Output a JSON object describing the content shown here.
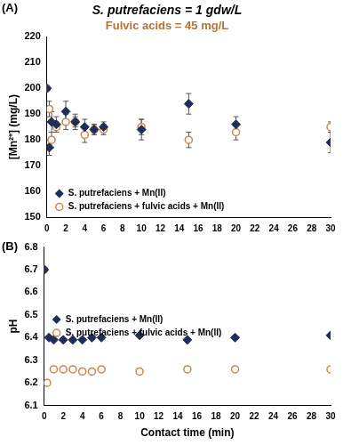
{
  "chart_data": [
    {
      "type": "scatter",
      "annotation": "(A)",
      "title": "S. putrefaciens = 1 gdw/L",
      "subtitle": "Fulvic acids = 45 mg/L",
      "y_label": "[Mn²⁺] (mg/L)",
      "xlim": [
        0,
        30
      ],
      "xticks": [
        0,
        2,
        4,
        6,
        8,
        10,
        12,
        14,
        16,
        18,
        20,
        22,
        24,
        26,
        28,
        30
      ],
      "ylim": [
        150,
        220
      ],
      "yticks": [
        150,
        160,
        170,
        180,
        190,
        200,
        210,
        220
      ],
      "grid": false,
      "legend": "lower left",
      "series": [
        {
          "name": "S. putrefaciens + Mn(II)",
          "color": "#1f2d5a",
          "marker": "diamond",
          "x": [
            0,
            0.25,
            0.5,
            1,
            2,
            3,
            4,
            5,
            6,
            10,
            15,
            20,
            30
          ],
          "values": [
            200,
            177,
            187,
            186,
            191,
            187,
            185,
            184,
            185,
            184,
            194,
            186,
            179
          ],
          "errors": [
            1,
            3,
            4,
            3,
            4,
            3,
            3,
            2,
            2,
            4,
            4,
            3,
            4
          ]
        },
        {
          "name": "S. putrefaciens + fulvic acids + Mn(II)",
          "color": "#c8864a",
          "marker": "open_circle",
          "x": [
            0,
            0.25,
            0.5,
            1,
            2,
            3,
            4,
            5,
            6,
            10,
            15,
            20,
            30
          ],
          "values": [
            200,
            192,
            180,
            185,
            187,
            187,
            182,
            184,
            184,
            185,
            180,
            183,
            185
          ],
          "errors": [
            1,
            3,
            3,
            2,
            3,
            2,
            3,
            2,
            2,
            3,
            3,
            3,
            2
          ]
        }
      ]
    },
    {
      "type": "scatter",
      "annotation": "(B)",
      "x_label": "Contact time (min)",
      "y_label": "pH",
      "xlim": [
        0,
        30
      ],
      "xticks": [
        0,
        2,
        4,
        6,
        8,
        10,
        12,
        14,
        16,
        18,
        20,
        22,
        24,
        26,
        28,
        30
      ],
      "ylim": [
        6.1,
        6.8
      ],
      "yticks": [
        6.1,
        6.2,
        6.3,
        6.4,
        6.5,
        6.6,
        6.7,
        6.8
      ],
      "grid": false,
      "legend": "center left",
      "series": [
        {
          "name": "S. putrefaciens + Mn(II)",
          "color": "#1f2d5a",
          "marker": "diamond",
          "x": [
            0,
            0.5,
            1,
            2,
            3,
            4,
            5,
            6,
            10,
            15,
            20,
            30
          ],
          "values": [
            6.7,
            6.4,
            6.39,
            6.39,
            6.39,
            6.39,
            6.4,
            6.4,
            6.41,
            6.39,
            6.4,
            6.41
          ]
        },
        {
          "name": "S. putrefaciens + fulvic acids + Mn(II)",
          "color": "#c8864a",
          "marker": "open_circle",
          "x": [
            0,
            0.3,
            1,
            2,
            3,
            4,
            5,
            6,
            10,
            15,
            20,
            30
          ],
          "values": [
            6.7,
            6.2,
            6.26,
            6.26,
            6.26,
            6.25,
            6.25,
            6.26,
            6.25,
            6.26,
            6.26,
            6.26
          ]
        }
      ]
    }
  ]
}
